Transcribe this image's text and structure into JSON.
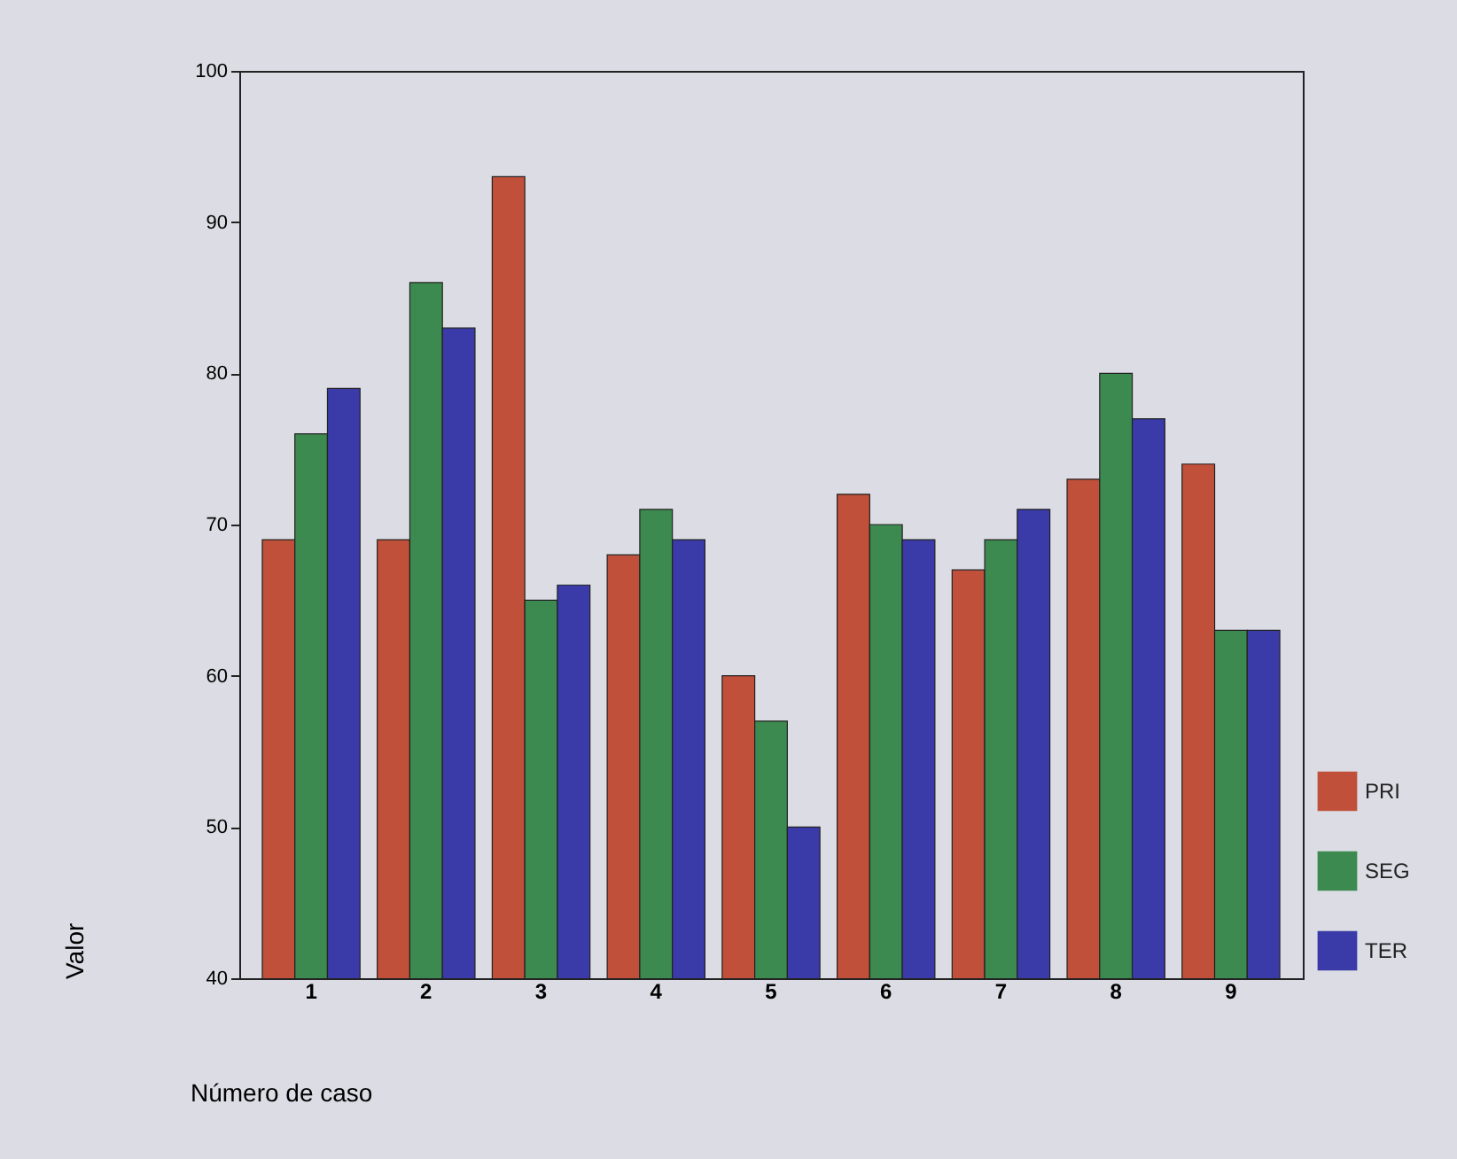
{
  "chart_data": {
    "type": "bar",
    "xlabel": "Número de caso",
    "ylabel": "Valor",
    "categories": [
      "1",
      "2",
      "3",
      "4",
      "5",
      "6",
      "7",
      "8",
      "9"
    ],
    "series": [
      {
        "name": "PRI",
        "color": "#c0503a",
        "values": [
          69,
          69,
          93,
          68,
          60,
          72,
          67,
          73,
          74
        ]
      },
      {
        "name": "SEG",
        "color": "#3c8a50",
        "values": [
          76,
          86,
          65,
          71,
          57,
          70,
          69,
          80,
          63
        ]
      },
      {
        "name": "TER",
        "color": "#3a3aa8",
        "values": [
          79,
          83,
          66,
          69,
          50,
          69,
          71,
          77,
          63
        ]
      }
    ],
    "ylim": [
      40,
      100
    ],
    "yticks": [
      40,
      50,
      60,
      70,
      80,
      90,
      100
    ],
    "grid": false,
    "legend": "right"
  }
}
